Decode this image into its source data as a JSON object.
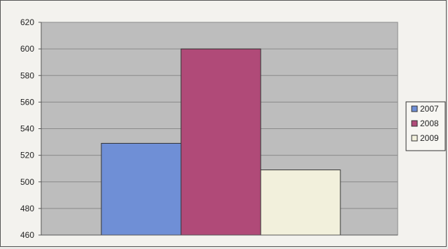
{
  "chart_data": {
    "type": "bar",
    "categories": [
      ""
    ],
    "series": [
      {
        "name": "2007",
        "values": [
          529
        ],
        "color": "#6f8fd6"
      },
      {
        "name": "2008",
        "values": [
          600
        ],
        "color": "#b04a78"
      },
      {
        "name": "2009",
        "values": [
          509
        ],
        "color": "#f2f0dc"
      }
    ],
    "ylim": [
      460,
      620
    ],
    "yticks": [
      "460",
      "480",
      "500",
      "520",
      "540",
      "560",
      "580",
      "600",
      "620"
    ],
    "grid": true,
    "legend_position": "right",
    "plot_background": "#bdbdbd"
  }
}
